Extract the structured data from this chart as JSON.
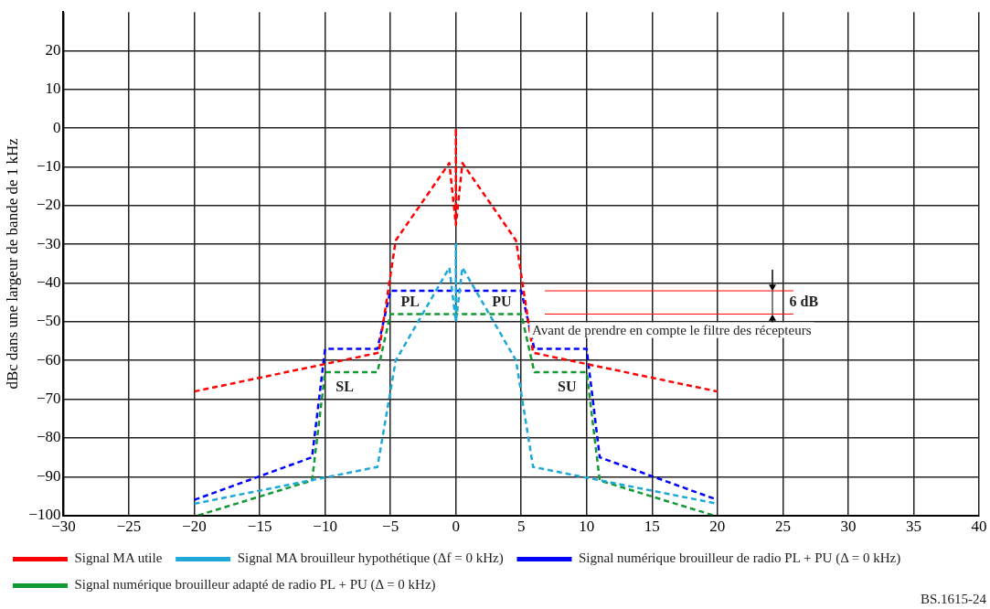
{
  "chart_data": {
    "type": "line",
    "ylabel": "dBc dans une largeur de bande de 1 kHz",
    "xlim": [
      -30,
      40
    ],
    "xticks": [
      -30,
      -25,
      -20,
      -15,
      -10,
      -5,
      0,
      5,
      10,
      15,
      20,
      25,
      30,
      35,
      40
    ],
    "ylim": [
      -100,
      30
    ],
    "yticks": [
      -100,
      -90,
      -80,
      -70,
      -60,
      -50,
      -40,
      -30,
      -20,
      -10,
      0,
      10,
      20
    ],
    "grid": true,
    "legend": "bottom",
    "marker": "none",
    "line_style": "dashed",
    "series": [
      {
        "name": "Signal MA utile",
        "color": "#ff0000",
        "x": [
          -20,
          -5.9,
          -4.6,
          -0.5,
          0,
          0,
          0,
          0.5,
          4.6,
          5.9,
          20
        ],
        "values": [
          -68,
          -58,
          -29,
          -9,
          -25,
          0,
          -25,
          -9,
          -29,
          -58,
          -68
        ]
      },
      {
        "name": "Signal MA brouilleur hypothétique (Δf = 0 kHz)",
        "color": "#1ea8d8",
        "x": [
          -20,
          -6,
          -4.6,
          -0.5,
          0,
          0,
          0,
          0.5,
          4.6,
          5.9,
          20
        ],
        "values": [
          -97,
          -87.5,
          -60,
          -36,
          -50,
          -30,
          -50,
          -36,
          -60,
          -87.5,
          -97
        ]
      },
      {
        "name": "Signal numérique brouilleur de radio PL + PU (Δ = 0 kHz)",
        "color": "#0000ff",
        "x": [
          -20,
          -11,
          -10,
          -6,
          -5,
          5,
          6,
          10,
          11,
          20
        ],
        "values": [
          -96,
          -85,
          -57,
          -57,
          -42,
          -42,
          -57,
          -57,
          -85,
          -96
        ]
      },
      {
        "name": "Signal numérique brouilleur adapté de radio PL + PU (Δ = 0 kHz)",
        "color": "#119933",
        "x": [
          -19.7,
          -11,
          -10,
          -6,
          -5,
          5,
          6,
          10,
          11,
          19.7
        ],
        "values": [
          -100,
          -91,
          -63,
          -63,
          -48,
          -48,
          -63,
          -63,
          -91,
          -100
        ]
      },
      {
        "color": "#ff0000",
        "line_style": "solid",
        "x": [
          6.8,
          25.8
        ],
        "values": [
          -42,
          -42
        ]
      },
      {
        "color": "#ff0000",
        "line_style": "solid",
        "x": [
          6.8,
          25.8
        ],
        "values": [
          -48,
          -48
        ]
      }
    ],
    "annotations": [
      "PL",
      "PU",
      "SL",
      "SU",
      "6 dB",
      {
        "text": "Avant de prendre en compte le filtre des récepteurs",
        "x": 16.5,
        "y": -48
      },
      "BS.1615-24"
    ]
  }
}
